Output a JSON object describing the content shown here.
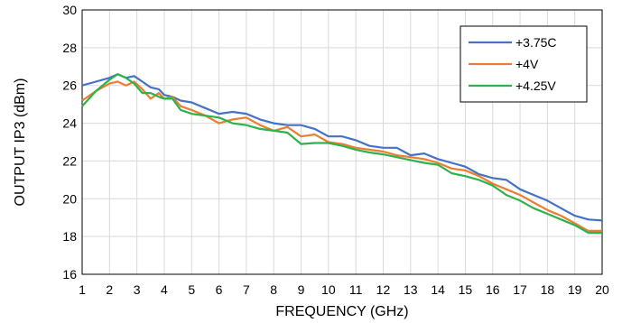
{
  "chart_data": {
    "type": "line",
    "xlabel": "FREQUENCY (GHz)",
    "ylabel": "OUTPUT IP3 (dBm)",
    "xlim": [
      1,
      20
    ],
    "ylim": [
      16,
      30
    ],
    "x_ticks": [
      "1",
      "2",
      "3",
      "4",
      "5",
      "6",
      "7",
      "8",
      "9",
      "10",
      "11",
      "12",
      "13",
      "14",
      "15",
      "16",
      "17",
      "18",
      "19",
      "20"
    ],
    "y_ticks": [
      "16",
      "18",
      "20",
      "22",
      "24",
      "26",
      "28",
      "30"
    ],
    "grid": true,
    "legend_position": "top-right",
    "series": [
      {
        "name": "+3.75C",
        "color": "#4472c4",
        "points": [
          [
            1,
            26.0
          ],
          [
            1.5,
            26.2
          ],
          [
            2,
            26.4
          ],
          [
            2.3,
            26.6
          ],
          [
            2.6,
            26.4
          ],
          [
            2.9,
            26.5
          ],
          [
            3.2,
            26.2
          ],
          [
            3.5,
            25.9
          ],
          [
            3.8,
            25.8
          ],
          [
            4.0,
            25.5
          ],
          [
            4.3,
            25.4
          ],
          [
            4.6,
            25.2
          ],
          [
            5,
            25.1
          ],
          [
            5.5,
            24.8
          ],
          [
            6,
            24.5
          ],
          [
            6.5,
            24.6
          ],
          [
            7,
            24.5
          ],
          [
            7.5,
            24.2
          ],
          [
            8,
            24.0
          ],
          [
            8.5,
            23.9
          ],
          [
            9,
            23.9
          ],
          [
            9.5,
            23.7
          ],
          [
            10,
            23.3
          ],
          [
            10.5,
            23.3
          ],
          [
            11,
            23.1
          ],
          [
            11.5,
            22.8
          ],
          [
            12,
            22.7
          ],
          [
            12.5,
            22.7
          ],
          [
            13,
            22.3
          ],
          [
            13.5,
            22.4
          ],
          [
            14,
            22.1
          ],
          [
            14.5,
            21.9
          ],
          [
            15,
            21.7
          ],
          [
            15.5,
            21.3
          ],
          [
            16,
            21.1
          ],
          [
            16.5,
            21.0
          ],
          [
            17,
            20.5
          ],
          [
            17.5,
            20.2
          ],
          [
            18,
            19.9
          ],
          [
            18.5,
            19.5
          ],
          [
            19,
            19.1
          ],
          [
            19.5,
            18.9
          ],
          [
            20,
            18.85
          ]
        ]
      },
      {
        "name": "+4V",
        "color": "#ed7d31",
        "points": [
          [
            1,
            25.2
          ],
          [
            1.5,
            25.7
          ],
          [
            2,
            26.1
          ],
          [
            2.3,
            26.2
          ],
          [
            2.6,
            26.0
          ],
          [
            2.9,
            26.2
          ],
          [
            3.2,
            25.8
          ],
          [
            3.5,
            25.3
          ],
          [
            3.8,
            25.6
          ],
          [
            4.0,
            25.3
          ],
          [
            4.3,
            25.4
          ],
          [
            4.6,
            24.9
          ],
          [
            5,
            24.7
          ],
          [
            5.5,
            24.4
          ],
          [
            6,
            24.0
          ],
          [
            6.5,
            24.2
          ],
          [
            7,
            24.3
          ],
          [
            7.5,
            23.9
          ],
          [
            8,
            23.6
          ],
          [
            8.5,
            23.8
          ],
          [
            9,
            23.3
          ],
          [
            9.5,
            23.4
          ],
          [
            10,
            23.0
          ],
          [
            10.5,
            22.9
          ],
          [
            11,
            22.7
          ],
          [
            11.5,
            22.6
          ],
          [
            12,
            22.5
          ],
          [
            12.5,
            22.3
          ],
          [
            13,
            22.2
          ],
          [
            13.5,
            22.1
          ],
          [
            14,
            21.9
          ],
          [
            14.5,
            21.6
          ],
          [
            15,
            21.5
          ],
          [
            15.5,
            21.2
          ],
          [
            16,
            20.8
          ],
          [
            16.5,
            20.5
          ],
          [
            17,
            20.2
          ],
          [
            17.5,
            19.8
          ],
          [
            18,
            19.4
          ],
          [
            18.5,
            19.1
          ],
          [
            19,
            18.7
          ],
          [
            19.5,
            18.3
          ],
          [
            20,
            18.3
          ]
        ]
      },
      {
        "name": "+4.25V",
        "color": "#2eb34a",
        "points": [
          [
            1,
            24.9
          ],
          [
            1.5,
            25.7
          ],
          [
            2,
            26.3
          ],
          [
            2.3,
            26.6
          ],
          [
            2.6,
            26.4
          ],
          [
            2.9,
            26.1
          ],
          [
            3.2,
            25.6
          ],
          [
            3.5,
            25.6
          ],
          [
            3.8,
            25.4
          ],
          [
            4.0,
            25.3
          ],
          [
            4.3,
            25.3
          ],
          [
            4.6,
            24.7
          ],
          [
            5,
            24.5
          ],
          [
            5.5,
            24.4
          ],
          [
            6,
            24.3
          ],
          [
            6.5,
            24.0
          ],
          [
            7,
            23.9
          ],
          [
            7.5,
            23.7
          ],
          [
            8,
            23.6
          ],
          [
            8.5,
            23.5
          ],
          [
            9,
            22.9
          ],
          [
            9.5,
            22.95
          ],
          [
            10,
            22.95
          ],
          [
            10.5,
            22.8
          ],
          [
            11,
            22.6
          ],
          [
            11.5,
            22.45
          ],
          [
            12,
            22.35
          ],
          [
            12.5,
            22.2
          ],
          [
            13,
            22.05
          ],
          [
            13.5,
            21.9
          ],
          [
            14,
            21.8
          ],
          [
            14.5,
            21.35
          ],
          [
            15,
            21.2
          ],
          [
            15.5,
            21.0
          ],
          [
            16,
            20.7
          ],
          [
            16.5,
            20.2
          ],
          [
            17,
            19.9
          ],
          [
            17.5,
            19.5
          ],
          [
            18,
            19.2
          ],
          [
            18.5,
            18.9
          ],
          [
            19,
            18.6
          ],
          [
            19.5,
            18.2
          ],
          [
            20,
            18.2
          ]
        ]
      }
    ]
  }
}
